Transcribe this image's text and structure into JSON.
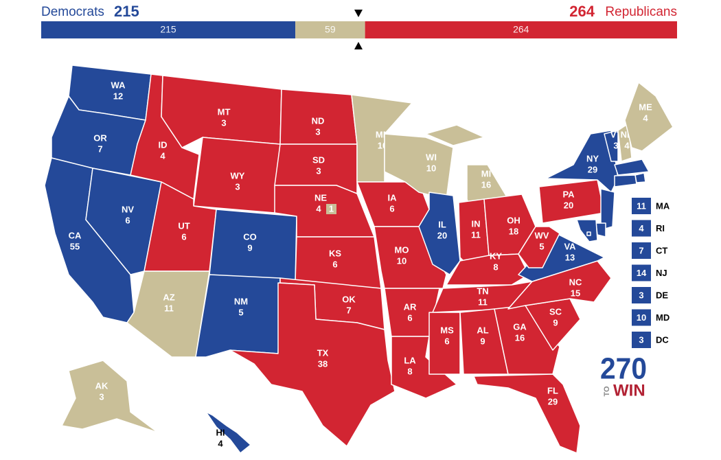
{
  "header": {
    "left_name": "Democrats",
    "left_total": 215,
    "right_total": 264,
    "right_name": "Republicans",
    "left_color": "#244999",
    "right_color": "#d22532"
  },
  "bar": {
    "segments": [
      {
        "value": 215,
        "color": "#244999"
      },
      {
        "value": 59,
        "color": "#c9bf98"
      },
      {
        "value": 264,
        "color": "#d22532"
      }
    ]
  },
  "states": [
    {
      "abbr": "WA",
      "votes": 12,
      "color": "#244999"
    },
    {
      "abbr": "OR",
      "votes": 7,
      "color": "#244999"
    },
    {
      "abbr": "CA",
      "votes": 55,
      "color": "#244999"
    },
    {
      "abbr": "NV",
      "votes": 6,
      "color": "#244999"
    },
    {
      "abbr": "ID",
      "votes": 4,
      "color": "#d22532"
    },
    {
      "abbr": "MT",
      "votes": 3,
      "color": "#d22532"
    },
    {
      "abbr": "WY",
      "votes": 3,
      "color": "#d22532"
    },
    {
      "abbr": "UT",
      "votes": 6,
      "color": "#d22532"
    },
    {
      "abbr": "AZ",
      "votes": 11,
      "color": "#c9bf98"
    },
    {
      "abbr": "CO",
      "votes": 9,
      "color": "#244999"
    },
    {
      "abbr": "NM",
      "votes": 5,
      "color": "#244999"
    },
    {
      "abbr": "ND",
      "votes": 3,
      "color": "#d22532"
    },
    {
      "abbr": "SD",
      "votes": 3,
      "color": "#d22532"
    },
    {
      "abbr": "NE",
      "votes": 4,
      "color": "#d22532",
      "district": {
        "votes": 1,
        "color": "#c9bf98"
      }
    },
    {
      "abbr": "KS",
      "votes": 6,
      "color": "#d22532"
    },
    {
      "abbr": "OK",
      "votes": 7,
      "color": "#d22532"
    },
    {
      "abbr": "TX",
      "votes": 38,
      "color": "#d22532"
    },
    {
      "abbr": "MN",
      "votes": 10,
      "color": "#c9bf98"
    },
    {
      "abbr": "IA",
      "votes": 6,
      "color": "#d22532"
    },
    {
      "abbr": "MO",
      "votes": 10,
      "color": "#d22532"
    },
    {
      "abbr": "AR",
      "votes": 6,
      "color": "#d22532"
    },
    {
      "abbr": "LA",
      "votes": 8,
      "color": "#d22532"
    },
    {
      "abbr": "WI",
      "votes": 10,
      "color": "#c9bf98"
    },
    {
      "abbr": "MI",
      "votes": 16,
      "color": "#c9bf98"
    },
    {
      "abbr": "IL",
      "votes": 20,
      "color": "#244999"
    },
    {
      "abbr": "IN",
      "votes": 11,
      "color": "#d22532"
    },
    {
      "abbr": "OH",
      "votes": 18,
      "color": "#d22532"
    },
    {
      "abbr": "KY",
      "votes": 8,
      "color": "#d22532"
    },
    {
      "abbr": "TN",
      "votes": 11,
      "color": "#d22532"
    },
    {
      "abbr": "MS",
      "votes": 6,
      "color": "#d22532"
    },
    {
      "abbr": "AL",
      "votes": 9,
      "color": "#d22532"
    },
    {
      "abbr": "GA",
      "votes": 16,
      "color": "#d22532"
    },
    {
      "abbr": "FL",
      "votes": 29,
      "color": "#d22532"
    },
    {
      "abbr": "SC",
      "votes": 9,
      "color": "#d22532"
    },
    {
      "abbr": "NC",
      "votes": 15,
      "color": "#d22532"
    },
    {
      "abbr": "VA",
      "votes": 13,
      "color": "#244999"
    },
    {
      "abbr": "WV",
      "votes": 5,
      "color": "#d22532"
    },
    {
      "abbr": "PA",
      "votes": 20,
      "color": "#d22532"
    },
    {
      "abbr": "NY",
      "votes": 29,
      "color": "#244999"
    },
    {
      "abbr": "VT",
      "votes": 3,
      "color": "#244999"
    },
    {
      "abbr": "NH",
      "votes": 4,
      "color": "#c9bf98"
    },
    {
      "abbr": "ME",
      "votes": 4,
      "color": "#c9bf98"
    },
    {
      "abbr": "AK",
      "votes": 3,
      "color": "#c9bf98"
    },
    {
      "abbr": "HI",
      "votes": 4,
      "color": "#244999"
    }
  ],
  "small_states": [
    {
      "abbr": "MA",
      "votes": 11,
      "color": "#244999"
    },
    {
      "abbr": "RI",
      "votes": 4,
      "color": "#244999"
    },
    {
      "abbr": "CT",
      "votes": 7,
      "color": "#244999"
    },
    {
      "abbr": "NJ",
      "votes": 14,
      "color": "#244999"
    },
    {
      "abbr": "DE",
      "votes": 3,
      "color": "#244999"
    },
    {
      "abbr": "MD",
      "votes": 10,
      "color": "#244999"
    },
    {
      "abbr": "DC",
      "votes": 3,
      "color": "#244999"
    }
  ],
  "logo": {
    "number": "270",
    "small": "TO",
    "word": "WIN"
  }
}
